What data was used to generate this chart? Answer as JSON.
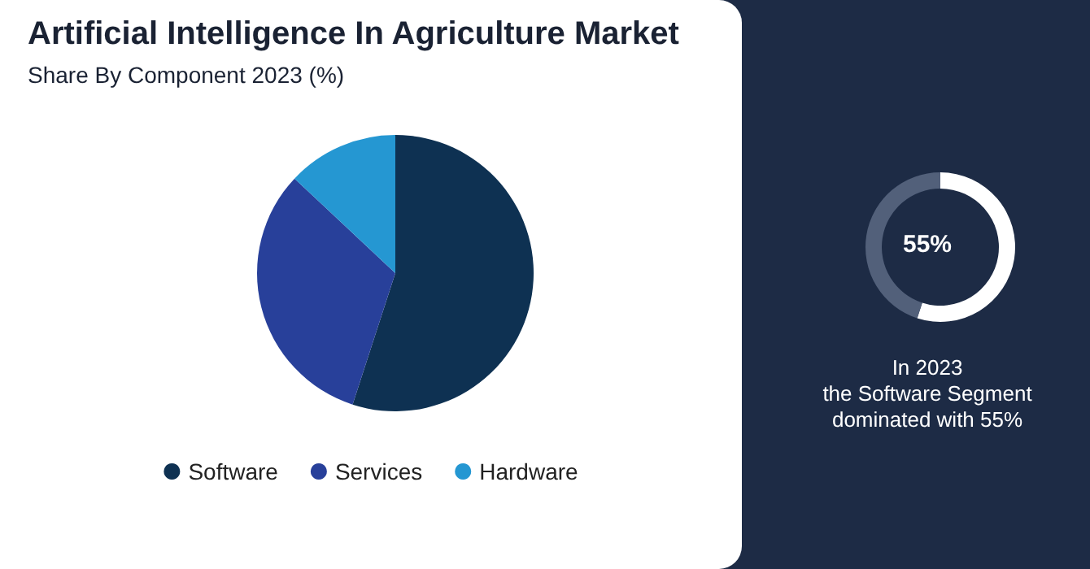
{
  "chart_data": [
    {
      "type": "pie",
      "title": "Artificial Intelligence In Agriculture Market",
      "subtitle": "Share By Component 2023 (%)",
      "categories": [
        "Software",
        "Services",
        "Hardware"
      ],
      "values": [
        55,
        32,
        13
      ],
      "colors": [
        "#0e3152",
        "#28409a",
        "#2597d2"
      ],
      "legend": "bottom"
    },
    {
      "type": "donut",
      "categories": [
        null,
        null
      ],
      "values": [
        55,
        45
      ],
      "colors": [
        "#ffffff",
        "#52607a"
      ],
      "annotations": [
        "55%",
        "In 2023\nthe Software Segment\ndominated with 55%"
      ]
    }
  ]
}
